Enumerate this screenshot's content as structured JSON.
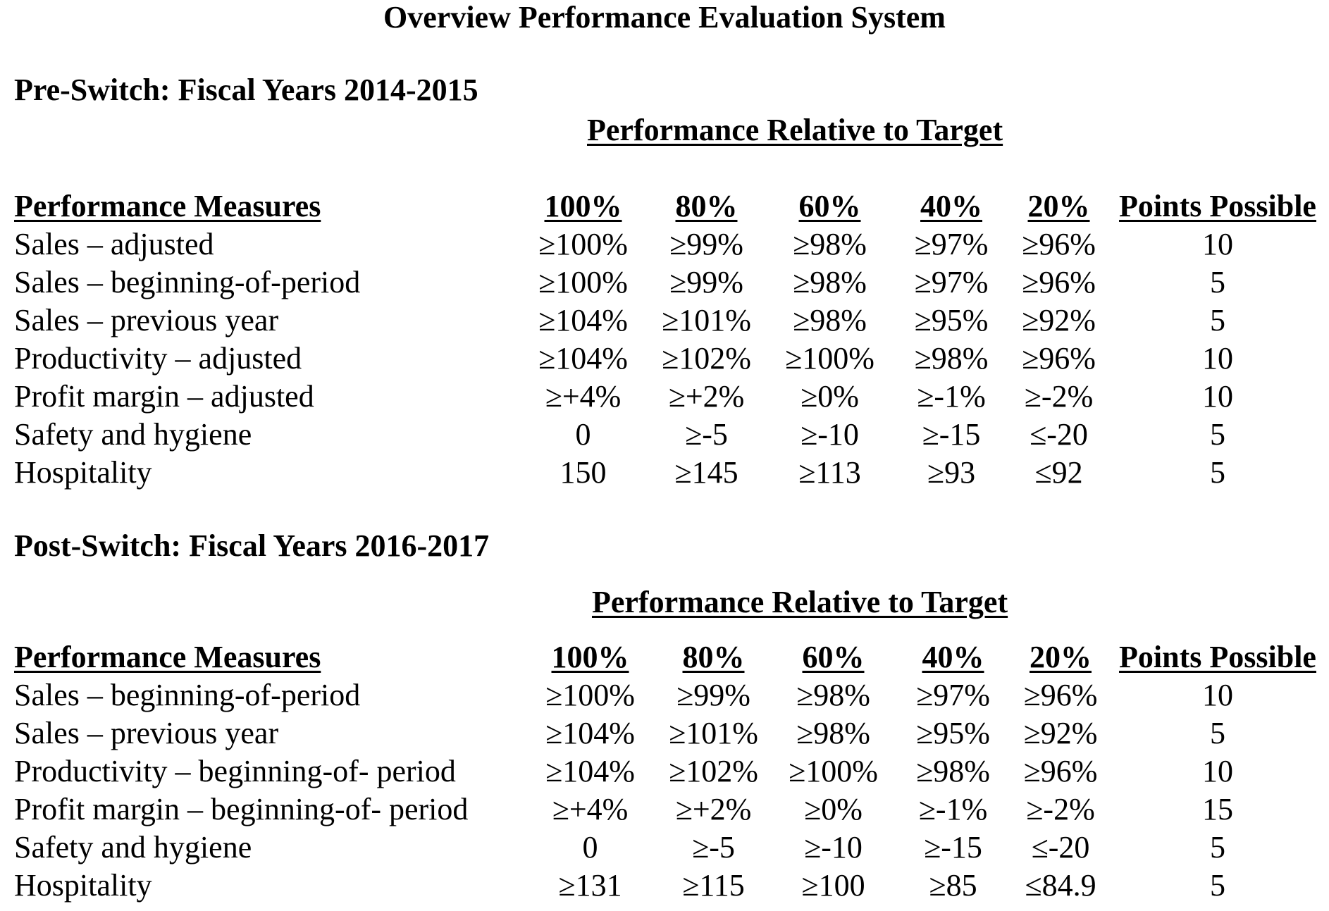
{
  "title": "Overview Performance Evaluation System",
  "sections": [
    {
      "heading": "Pre-Switch: Fiscal Years 2014-2015",
      "group_heading": "Performance Relative to Target",
      "columns": {
        "measure": "Performance Measures",
        "p100": "100%",
        "p80": "80%",
        "p60": "60%",
        "p40": "40%",
        "p20": "20%",
        "points": "Points Possible"
      },
      "rows": [
        {
          "measure": "Sales – adjusted",
          "p100": "≥100%",
          "p80": "≥99%",
          "p60": "≥98%",
          "p40": "≥97%",
          "p20": "≥96%",
          "points": "10"
        },
        {
          "measure": "Sales – beginning-of-period",
          "p100": "≥100%",
          "p80": "≥99%",
          "p60": "≥98%",
          "p40": "≥97%",
          "p20": "≥96%",
          "points": "5"
        },
        {
          "measure": "Sales – previous year",
          "p100": "≥104%",
          "p80": "≥101%",
          "p60": "≥98%",
          "p40": "≥95%",
          "p20": "≥92%",
          "points": "5"
        },
        {
          "measure": "Productivity – adjusted",
          "p100": "≥104%",
          "p80": "≥102%",
          "p60": "≥100%",
          "p40": "≥98%",
          "p20": "≥96%",
          "points": "10"
        },
        {
          "measure": "Profit margin – adjusted",
          "p100": "≥+4%",
          "p80": "≥+2%",
          "p60": "≥0%",
          "p40": "≥-1%",
          "p20": "≥-2%",
          "points": "10"
        },
        {
          "measure": "Safety and hygiene",
          "p100": "0",
          "p80": "≥-5",
          "p60": "≥-10",
          "p40": "≥-15",
          "p20": "≤-20",
          "points": "5"
        },
        {
          "measure": "Hospitality",
          "p100": "150",
          "p80": "≥145",
          "p60": "≥113",
          "p40": "≥93",
          "p20": "≤92",
          "points": "5"
        }
      ]
    },
    {
      "heading": "Post-Switch: Fiscal Years 2016-2017",
      "group_heading": "Performance Relative to Target",
      "columns": {
        "measure": "Performance Measures",
        "p100": "100%",
        "p80": "80%",
        "p60": "60%",
        "p40": "40%",
        "p20": "20%",
        "points": "Points Possible"
      },
      "rows": [
        {
          "measure": "Sales – beginning-of-period",
          "p100": "≥100%",
          "p80": "≥99%",
          "p60": "≥98%",
          "p40": "≥97%",
          "p20": "≥96%",
          "points": "10"
        },
        {
          "measure": "Sales – previous year",
          "p100": "≥104%",
          "p80": "≥101%",
          "p60": "≥98%",
          "p40": "≥95%",
          "p20": "≥92%",
          "points": "5"
        },
        {
          "measure": "Productivity – beginning-of- period",
          "p100": "≥104%",
          "p80": "≥102%",
          "p60": "≥100%",
          "p40": "≥98%",
          "p20": "≥96%",
          "points": "10"
        },
        {
          "measure": "Profit margin – beginning-of- period",
          "p100": "≥+4%",
          "p80": "≥+2%",
          "p60": "≥0%",
          "p40": "≥-1%",
          "p20": "≥-2%",
          "points": "15"
        },
        {
          "measure": "Safety and hygiene",
          "p100": "0",
          "p80": "≥-5",
          "p60": "≥-10",
          "p40": "≥-15",
          "p20": "≤-20",
          "points": "5"
        },
        {
          "measure": "Hospitality",
          "p100": "≥131",
          "p80": "≥115",
          "p60": "≥100",
          "p40": "≥85",
          "p20": "≤84.9",
          "points": "5"
        }
      ]
    }
  ]
}
